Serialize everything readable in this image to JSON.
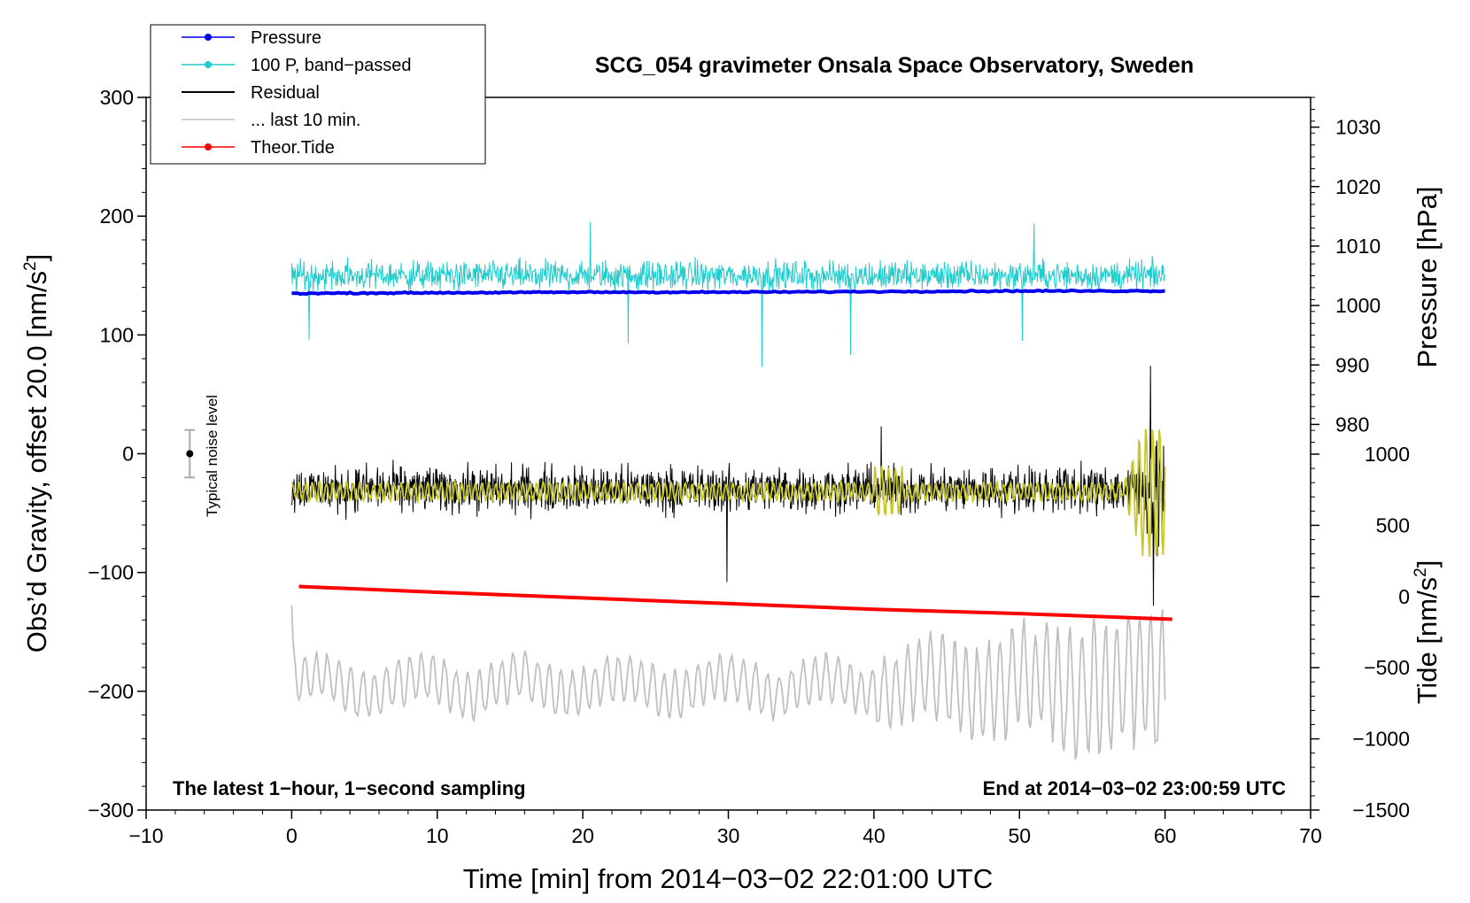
{
  "colors": {
    "pressure": "#0000ee",
    "band_passed": "#22cccc",
    "residual": "#000000",
    "residual_filtered": "#c8c828",
    "last10": "#c0c0c0",
    "tide": "#ff0000"
  },
  "chart_data": {
    "type": "line",
    "title": "SCG_054 gravimeter Onsala Space Observatory, Sweden",
    "xlabel": "Time [min] from 2014−03−02 22:01:00 UTC",
    "ylabel_left": "Obs’d Gravity, offset 20.0 [nm/s",
    "ylabel_left_sup": "2",
    "ylabel_left_end": "]",
    "ylabel_right_pressure": "Pressure [hPa]",
    "ylabel_right_tide": "Tide [nm/s",
    "ylabel_right_tide_sup": "2",
    "ylabel_right_tide_end": "]",
    "xlim": [
      -10,
      70
    ],
    "ylim": [
      -300,
      300
    ],
    "pressure_axis_range": [
      975,
      1035
    ],
    "tide_axis_range": [
      -1500,
      1000
    ],
    "x_ticks": [
      -10,
      0,
      10,
      20,
      30,
      40,
      50,
      60,
      70
    ],
    "x_tick_labels": [
      "−10",
      "0",
      "10",
      "20",
      "30",
      "40",
      "50",
      "60",
      "70"
    ],
    "y_ticks": [
      -300,
      -200,
      -100,
      0,
      100,
      200,
      300
    ],
    "y_tick_labels": [
      "−300",
      "−200",
      "−100",
      "0",
      "100",
      "200",
      "300"
    ],
    "pressure_ticks": [
      980,
      990,
      1000,
      1010,
      1020,
      1030
    ],
    "pressure_tick_labels": [
      "980",
      "990",
      "1000",
      "1010",
      "1020",
      "1030"
    ],
    "tide_ticks": [
      -1500,
      -1000,
      -500,
      0,
      500,
      1000
    ],
    "tide_tick_labels": [
      "−1500",
      "−1000",
      "−500",
      "0",
      "500",
      "1000"
    ],
    "legend": {
      "position": "top-left",
      "entries": [
        {
          "label": "Pressure",
          "color": "#0000ee",
          "marker": true
        },
        {
          "label": "100 P, band−passed",
          "color": "#22cccc",
          "marker": true
        },
        {
          "label": "Residual",
          "color": "#000000",
          "marker": false
        },
        {
          "label": "... last 10 min.",
          "color": "#c0c0c0",
          "marker": false
        },
        {
          "label": "Theor.Tide",
          "color": "#ff0000",
          "marker": true
        }
      ]
    },
    "noise_marker": {
      "x": -7,
      "y": 0,
      "half_range": 20,
      "label": "Typical noise level"
    },
    "annotation_left": "The latest 1−hour, 1−second sampling",
    "annotation_right": "End at 2014−03−02 23:00:59 UTC",
    "series": [
      {
        "name": "Pressure",
        "axis": "gravity_y",
        "x": [
          0,
          10,
          20,
          30,
          40,
          50,
          60
        ],
        "values": [
          135,
          135.5,
          136,
          136,
          136.5,
          137,
          137
        ]
      },
      {
        "name": "100 P, band−passed",
        "axis": "gravity_y",
        "x_range": [
          0,
          60
        ],
        "baseline": 150,
        "noise_amplitude": 18,
        "spikes": [
          {
            "x": 32.3,
            "y": 73
          },
          {
            "x": 38.4,
            "y": 83
          },
          {
            "x": 23.1,
            "y": 93
          },
          {
            "x": 50.2,
            "y": 95
          },
          {
            "x": 20.5,
            "y": 195
          },
          {
            "x": 51.0,
            "y": 194
          },
          {
            "x": 1.2,
            "y": 96
          }
        ]
      },
      {
        "name": "Residual",
        "axis": "gravity_y",
        "x_range": [
          0,
          60
        ],
        "baseline": -30,
        "noise_amplitude": 28,
        "spikes": [
          {
            "x": 29.9,
            "y": -108
          },
          {
            "x": 59.0,
            "y": 74
          },
          {
            "x": 59.2,
            "y": -128
          },
          {
            "x": 40.5,
            "y": 23
          }
        ]
      },
      {
        "name": "Residual (filtered)",
        "axis": "gravity_y",
        "x_range": [
          0,
          60
        ],
        "baseline": -32,
        "amplitude": 7,
        "burst_start": 57,
        "burst_amplitude": 55
      },
      {
        "name": "... last 10 min.",
        "axis": "gravity_y",
        "x_range": [
          0,
          60
        ],
        "baseline": -195,
        "amplitude": 25,
        "growth": [
          {
            "x": 40,
            "amp": 35
          },
          {
            "x": 50,
            "amp": 55
          },
          {
            "x": 60,
            "amp": 80
          }
        ]
      },
      {
        "name": "Theor.Tide",
        "axis": "tide_y",
        "x": [
          0.5,
          10,
          20,
          30,
          40,
          50,
          60.5
        ],
        "values": [
          70,
          30,
          -10,
          -50,
          -90,
          -120,
          -160
        ]
      }
    ]
  }
}
